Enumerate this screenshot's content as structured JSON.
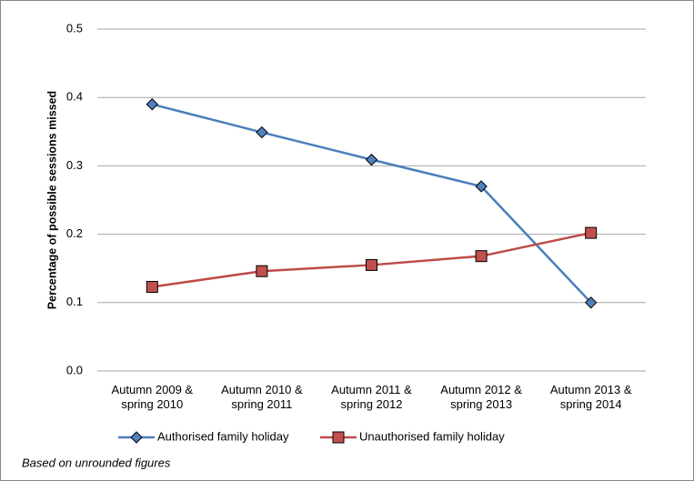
{
  "chart_data": {
    "type": "line",
    "y_label": "Percentage of possible sessions missed",
    "categories": [
      "Autumn 2009 & spring 2010",
      "Autumn 2010 & spring 2011",
      "Autumn 2011 & spring 2012",
      "Autumn 2012 & spring 2013",
      "Autumn 2013 & spring 2014"
    ],
    "series": [
      {
        "name": "Authorised family holiday",
        "color": "#4a7ebb",
        "marker_color": "#4f81bd",
        "marker": "diamond",
        "values": [
          0.39,
          0.349,
          0.309,
          0.27,
          0.1
        ]
      },
      {
        "name": "Unauthorised family holiday",
        "color": "#be4b48",
        "marker_color": "#c0504d",
        "marker": "square",
        "values": [
          0.123,
          0.146,
          0.155,
          0.168,
          0.202
        ]
      }
    ],
    "ylim": [
      0,
      0.5
    ],
    "yticks": [
      {
        "value": 0,
        "label": "0.0"
      },
      0.1,
      0.2,
      0.3,
      0.4,
      0.5
    ],
    "grid": true,
    "legend": "bottom",
    "note": "Based on unrounded figures"
  }
}
